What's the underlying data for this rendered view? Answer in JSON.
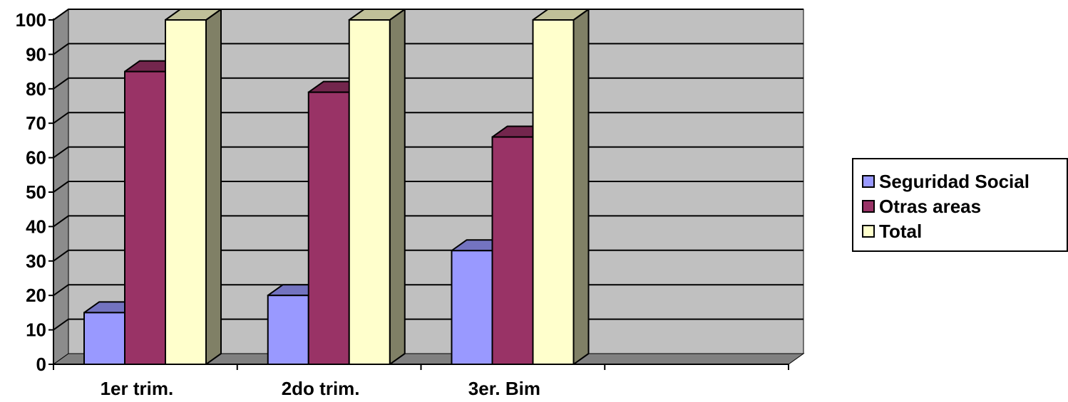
{
  "chart_data": {
    "type": "bar",
    "categories": [
      "1er trim.",
      "2do trim.",
      "3er. Bim",
      ""
    ],
    "series": [
      {
        "name": "Seguridad Social",
        "values": [
          15,
          20,
          33,
          null
        ],
        "color": "#9999ff",
        "top_color": "#7373c0",
        "side_color": "#6b6bb3"
      },
      {
        "name": "Otras areas",
        "values": [
          85,
          79,
          66,
          null
        ],
        "color": "#993366",
        "top_color": "#73264d",
        "side_color": "#6b2447"
      },
      {
        "name": "Total",
        "values": [
          100,
          100,
          100,
          null
        ],
        "color": "#ffffcc",
        "top_color": "#c0c099",
        "side_color": "#808066"
      }
    ],
    "ylim": [
      0,
      100
    ],
    "yticks": [
      0,
      10,
      20,
      30,
      40,
      50,
      60,
      70,
      80,
      90,
      100
    ],
    "grid": true,
    "legend_position": "right",
    "wall_color": "#c0c0c0",
    "floor_color": "#808080"
  }
}
